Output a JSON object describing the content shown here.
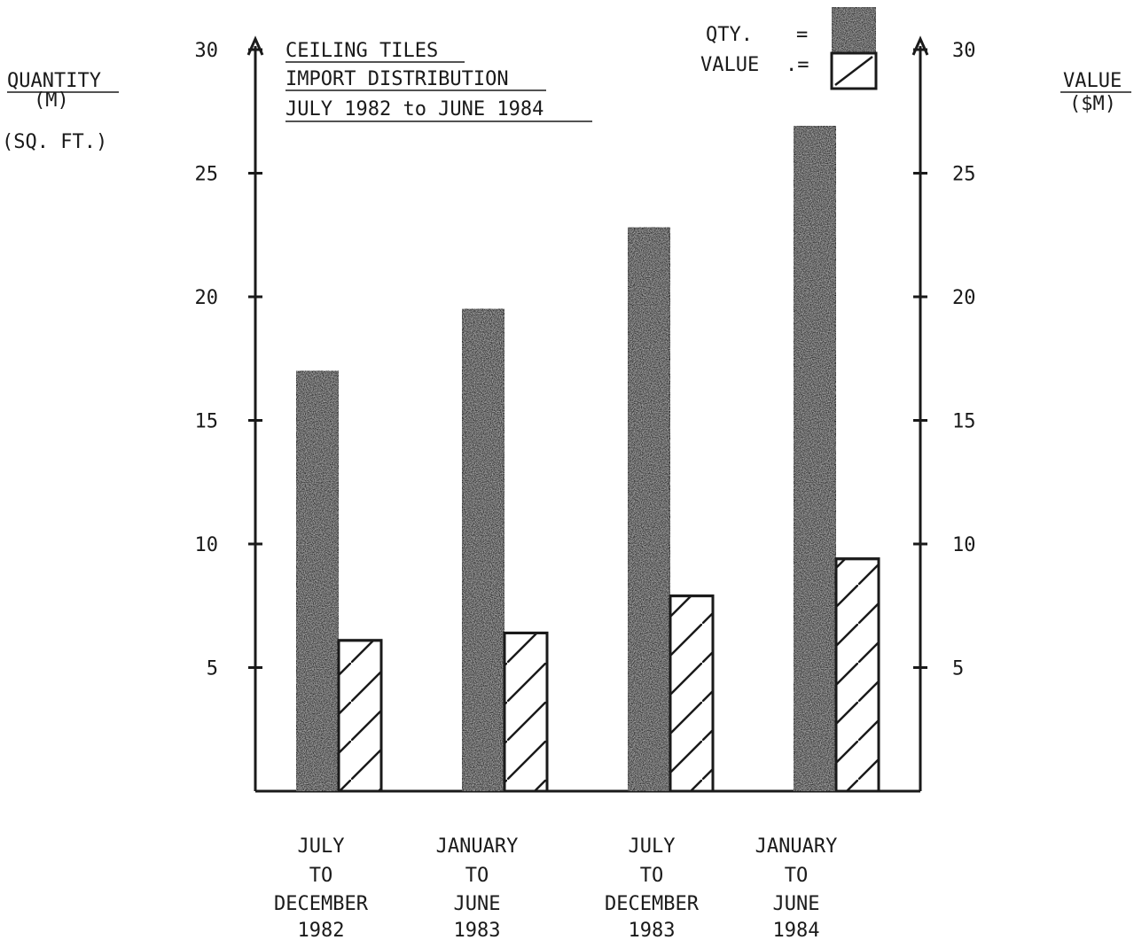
{
  "chart_data": {
    "type": "bar",
    "title_lines": [
      "CEILING TILES",
      "IMPORT DISTRIBUTION",
      "JULY 1982 to JUNE 1984"
    ],
    "categories": [
      [
        "JULY",
        "TO",
        "DECEMBER",
        "1982"
      ],
      [
        "JANUARY",
        "TO",
        "JUNE",
        "1983"
      ],
      [
        "JULY",
        "TO",
        "DECEMBER",
        "1983"
      ],
      [
        "JANUARY",
        "TO",
        "JUNE",
        "1984"
      ]
    ],
    "series": [
      {
        "name": "QTY.",
        "legend_suffix": "=",
        "axis": "left",
        "values": [
          17.0,
          19.5,
          22.8,
          26.9
        ]
      },
      {
        "name": "VALUE",
        "legend_suffix": ".=",
        "axis": "right",
        "values": [
          6.1,
          6.4,
          7.9,
          9.4
        ]
      }
    ],
    "left_axis": {
      "label_lines": [
        "QUANTITY",
        "(M)",
        "(SQ. FT.)"
      ],
      "range": [
        0,
        30
      ],
      "ticks": [
        "5",
        "10",
        "15",
        "20",
        "25",
        "30"
      ],
      "tick_values": [
        5,
        10,
        15,
        20,
        25,
        30
      ]
    },
    "right_axis": {
      "label_lines": [
        "VALUE",
        "($M)"
      ],
      "range": [
        0,
        30
      ],
      "ticks": [
        "5",
        "10",
        "15",
        "20",
        "25",
        "30"
      ],
      "tick_values": [
        5,
        10,
        15,
        20,
        25,
        30
      ]
    },
    "legend_position": "top-right",
    "grid": false,
    "colors": {
      "ink": "#1a1a1a",
      "qty_fill": "#3a3a3a",
      "value_fill": "#ffffff"
    }
  }
}
